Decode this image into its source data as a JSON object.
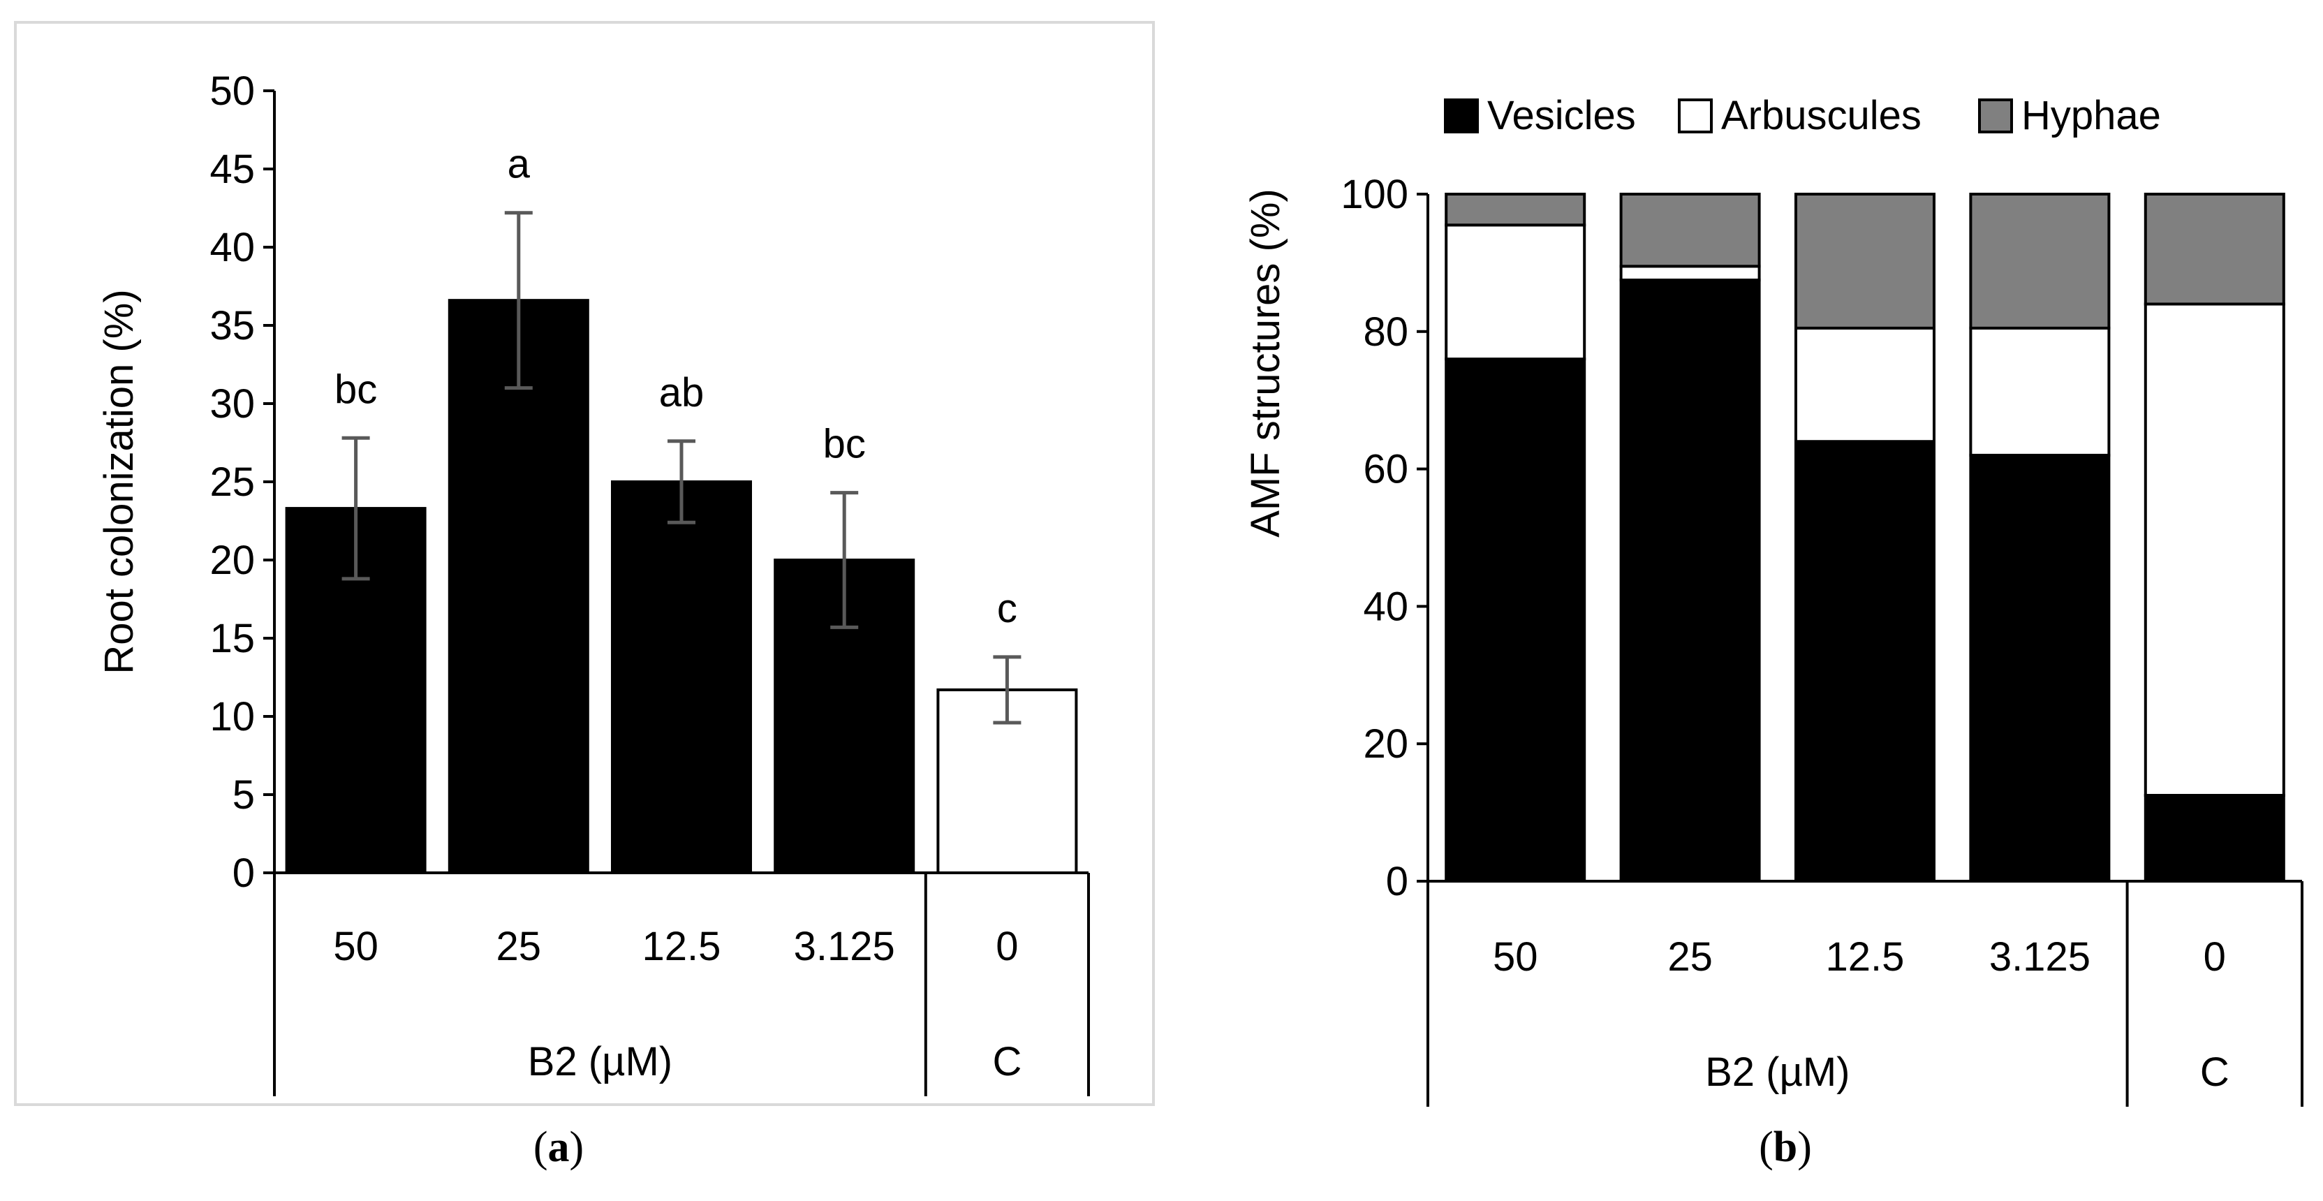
{
  "chart_data": [
    {
      "type": "bar",
      "panel": "a",
      "caption_letter": "a",
      "ylabel": "Root colonization (%)",
      "ylim": [
        0,
        50
      ],
      "yticks": [
        "0",
        "5",
        "10",
        "15",
        "20",
        "25",
        "30",
        "35",
        "40",
        "45",
        "50"
      ],
      "categories": [
        "50",
        "25",
        "12.5",
        "3.125",
        "0"
      ],
      "values": [
        23.3,
        36.6,
        25.0,
        20.0,
        11.7
      ],
      "error": [
        4.5,
        5.6,
        2.6,
        4.3,
        2.1
      ],
      "letters": [
        "bc",
        "a",
        "ab",
        "bc",
        "c"
      ],
      "fills": [
        "#000000",
        "#000000",
        "#000000",
        "#000000",
        "#ffffff"
      ],
      "group_labels": [
        "B2 (µM)",
        "C"
      ],
      "colors": {
        "bar": "#000000",
        "control": "#ffffff",
        "error": "#595959",
        "frame": "#d9d9d9"
      }
    },
    {
      "type": "stacked-bar",
      "panel": "b",
      "caption_letter": "b",
      "ylabel": "AMF structures (%)",
      "ylim": [
        0,
        100
      ],
      "yticks": [
        "0",
        "20",
        "40",
        "60",
        "80",
        "100"
      ],
      "categories": [
        "50",
        "25",
        "12.5",
        "3.125",
        "0"
      ],
      "series": [
        {
          "name": "Vesicles",
          "color": "#000000",
          "values": [
            76,
            87.5,
            64,
            62,
            12.5
          ]
        },
        {
          "name": "Arbuscules",
          "color": "#ffffff",
          "values": [
            19.5,
            2,
            16.5,
            18.5,
            71.5
          ]
        },
        {
          "name": "Hyphae",
          "color": "#808080",
          "values": [
            4.5,
            10.5,
            19.5,
            19.5,
            16
          ]
        }
      ],
      "legend_position": "top",
      "group_labels": [
        "B2 (µM)",
        "C"
      ]
    }
  ]
}
